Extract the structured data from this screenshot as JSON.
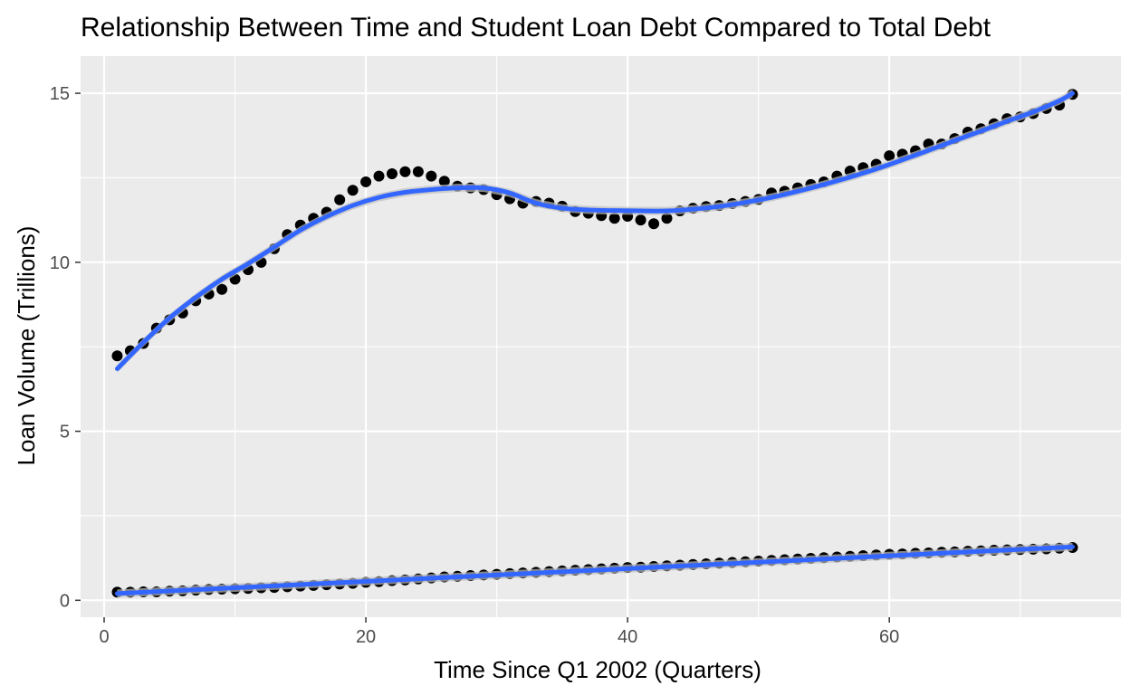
{
  "chart_data": {
    "type": "scatter",
    "title": "Relationship Between Time and Student Loan Debt Compared to Total Debt",
    "xlabel": "Time Since Q1 2002 (Quarters)",
    "ylabel": "Loan Volume (Trillions)",
    "xlim": [
      -1.8,
      77.7
    ],
    "ylim": [
      -0.5,
      16.1
    ],
    "x_ticks": [
      0,
      20,
      40,
      60
    ],
    "y_ticks": [
      0,
      5,
      10,
      15
    ],
    "x_tick_labels": [
      "0",
      "20",
      "40",
      "60"
    ],
    "y_tick_labels": [
      "0",
      "5",
      "10",
      "15"
    ],
    "grid": true,
    "legend": "none",
    "point_color": "#000000",
    "smooth_color": "#3366FF",
    "ribbon_color": "#BFBFBF",
    "panel_color": "#EBEBEB",
    "series": [
      {
        "x": [
          1,
          2,
          3,
          4,
          5,
          6,
          7,
          8,
          9,
          10,
          11,
          12,
          13,
          14,
          15,
          16,
          17,
          18,
          19,
          20,
          21,
          22,
          23,
          24,
          25,
          26,
          27,
          28,
          29,
          30,
          31,
          32,
          33,
          34,
          35,
          36,
          37,
          38,
          39,
          40,
          41,
          42,
          43,
          44,
          45,
          46,
          47,
          48,
          49,
          50,
          51,
          52,
          53,
          54,
          55,
          56,
          57,
          58,
          59,
          60,
          61,
          62,
          63,
          64,
          65,
          66,
          67,
          68,
          69,
          70,
          71,
          72,
          73,
          74
        ],
        "y": [
          7.23,
          7.38,
          7.6,
          8.05,
          8.3,
          8.5,
          8.86,
          9.06,
          9.2,
          9.5,
          9.78,
          10.0,
          10.4,
          10.82,
          11.1,
          11.3,
          11.48,
          11.85,
          12.13,
          12.38,
          12.55,
          12.62,
          12.68,
          12.68,
          12.55,
          12.4,
          12.25,
          12.2,
          12.15,
          12.0,
          11.88,
          11.75,
          11.8,
          11.75,
          11.66,
          11.5,
          11.45,
          11.38,
          11.3,
          11.36,
          11.25,
          11.14,
          11.3,
          11.52,
          11.6,
          11.65,
          11.68,
          11.74,
          11.8,
          11.86,
          12.05,
          12.1,
          12.2,
          12.3,
          12.38,
          12.55,
          12.7,
          12.8,
          12.9,
          13.15,
          13.2,
          13.3,
          13.5,
          13.5,
          13.66,
          13.85,
          13.95,
          14.1,
          14.25,
          14.3,
          14.4,
          14.55,
          14.65,
          14.97
        ],
        "smooth": [
          [
            1,
            6.85
          ],
          [
            3,
            7.63
          ],
          [
            5,
            8.35
          ],
          [
            7,
            8.96
          ],
          [
            9,
            9.5
          ],
          [
            11,
            9.96
          ],
          [
            13,
            10.45
          ],
          [
            15,
            10.95
          ],
          [
            17,
            11.35
          ],
          [
            19,
            11.68
          ],
          [
            21,
            11.92
          ],
          [
            23,
            12.07
          ],
          [
            25,
            12.15
          ],
          [
            27,
            12.2
          ],
          [
            29,
            12.2
          ],
          [
            31,
            12.05
          ],
          [
            33,
            11.75
          ],
          [
            35,
            11.6
          ],
          [
            37,
            11.55
          ],
          [
            39,
            11.53
          ],
          [
            41,
            11.52
          ],
          [
            43,
            11.52
          ],
          [
            45,
            11.57
          ],
          [
            47,
            11.65
          ],
          [
            49,
            11.77
          ],
          [
            51,
            11.92
          ],
          [
            53,
            12.1
          ],
          [
            55,
            12.3
          ],
          [
            57,
            12.52
          ],
          [
            59,
            12.76
          ],
          [
            61,
            13.03
          ],
          [
            63,
            13.31
          ],
          [
            65,
            13.6
          ],
          [
            67,
            13.88
          ],
          [
            69,
            14.17
          ],
          [
            71,
            14.45
          ],
          [
            73,
            14.78
          ],
          [
            74,
            15.0
          ]
        ]
      },
      {
        "x": [
          1,
          2,
          3,
          4,
          5,
          6,
          7,
          8,
          9,
          10,
          11,
          12,
          13,
          14,
          15,
          16,
          17,
          18,
          19,
          20,
          21,
          22,
          23,
          24,
          25,
          26,
          27,
          28,
          29,
          30,
          31,
          32,
          33,
          34,
          35,
          36,
          37,
          38,
          39,
          40,
          41,
          42,
          43,
          44,
          45,
          46,
          47,
          48,
          49,
          50,
          51,
          52,
          53,
          54,
          55,
          56,
          57,
          58,
          59,
          60,
          61,
          62,
          63,
          64,
          65,
          66,
          67,
          68,
          69,
          70,
          71,
          72,
          73,
          74
        ],
        "y": [
          0.24,
          0.24,
          0.25,
          0.25,
          0.27,
          0.28,
          0.3,
          0.32,
          0.33,
          0.34,
          0.35,
          0.37,
          0.38,
          0.4,
          0.42,
          0.44,
          0.46,
          0.48,
          0.5,
          0.53,
          0.55,
          0.58,
          0.6,
          0.63,
          0.66,
          0.69,
          0.71,
          0.73,
          0.75,
          0.77,
          0.79,
          0.81,
          0.83,
          0.85,
          0.87,
          0.89,
          0.91,
          0.93,
          0.95,
          0.97,
          0.98,
          1.0,
          1.02,
          1.04,
          1.06,
          1.08,
          1.1,
          1.12,
          1.14,
          1.16,
          1.18,
          1.2,
          1.22,
          1.24,
          1.26,
          1.28,
          1.3,
          1.32,
          1.34,
          1.36,
          1.37,
          1.39,
          1.4,
          1.42,
          1.43,
          1.45,
          1.46,
          1.48,
          1.49,
          1.5,
          1.51,
          1.52,
          1.54,
          1.56
        ],
        "smooth": [
          [
            1,
            0.2
          ],
          [
            74,
            1.58
          ]
        ]
      }
    ]
  }
}
